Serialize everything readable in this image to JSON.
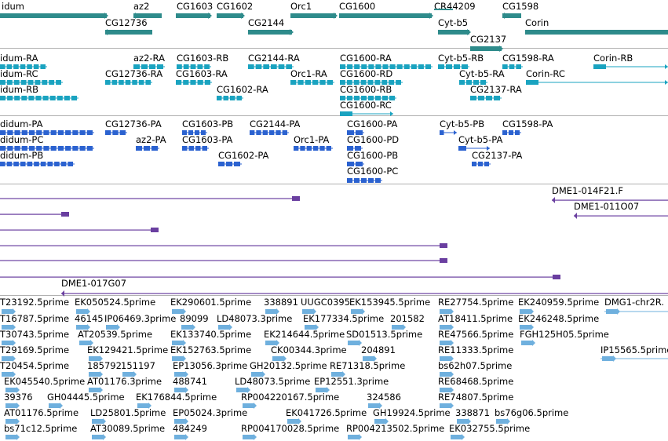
{
  "tracks": {
    "genes": {
      "color": "#2e8b8b",
      "features": [
        {
          "label": "idum"
        },
        {
          "label": "az2"
        },
        {
          "label": "CG1603"
        },
        {
          "label": "CG1602"
        },
        {
          "label": "Orc1"
        },
        {
          "label": "CG1600"
        },
        {
          "label": "CR44209"
        },
        {
          "label": "CG1598"
        },
        {
          "label": "CG12736"
        },
        {
          "label": "CG2144"
        },
        {
          "label": "Cyt-b5"
        },
        {
          "label": "Corin"
        },
        {
          "label": "CG2137"
        }
      ]
    },
    "transcripts_ra": {
      "color": "#1aa3c0",
      "features": [
        {
          "label": "idum-RA"
        },
        {
          "label": "az2-RA"
        },
        {
          "label": "CG1603-RB"
        },
        {
          "label": "CG2144-RA"
        },
        {
          "label": "CG1600-RA"
        },
        {
          "label": "Cyt-b5-RB"
        },
        {
          "label": "CG1598-RA"
        },
        {
          "label": "Corin-RB"
        },
        {
          "label": "idum-RC"
        },
        {
          "label": "CG12736-RA"
        },
        {
          "label": "CG1603-RA"
        },
        {
          "label": "Orc1-RA"
        },
        {
          "label": "CG1600-RD"
        },
        {
          "label": "Cyt-b5-RA"
        },
        {
          "label": "Corin-RC"
        },
        {
          "label": "idum-RB"
        },
        {
          "label": "CG1602-RA"
        },
        {
          "label": "CG1600-RB"
        },
        {
          "label": "CG2137-RA"
        },
        {
          "label": "CG1600-RC"
        }
      ]
    },
    "proteins_pa": {
      "color": "#2b62d0",
      "features": [
        {
          "label": "didum-PA"
        },
        {
          "label": "CG12736-PA"
        },
        {
          "label": "CG1603-PB"
        },
        {
          "label": "CG2144-PA"
        },
        {
          "label": "CG1600-PA"
        },
        {
          "label": "Cyt-b5-PB"
        },
        {
          "label": "CG1598-PA"
        },
        {
          "label": "didum-PC"
        },
        {
          "label": "az2-PA"
        },
        {
          "label": "CG1603-PA"
        },
        {
          "label": "Orc1-PA"
        },
        {
          "label": "CG1600-PD"
        },
        {
          "label": "Cyt-b5-PA"
        },
        {
          "label": "didum-PB"
        },
        {
          "label": "CG1602-PA"
        },
        {
          "label": "CG1600-PB"
        },
        {
          "label": "CG2137-PA"
        },
        {
          "label": "CG1600-PC"
        }
      ]
    },
    "clones": {
      "color": "#6a3fa0",
      "features": [
        {
          "label": "DME1-014F21.F"
        },
        {
          "label": "DME1-011O07"
        },
        {
          "label": "DME1-017G07"
        }
      ]
    },
    "ests": {
      "color": "#6fb0de",
      "features": [
        {
          "label": "T23192.5prime"
        },
        {
          "label": "EK050524.5prime"
        },
        {
          "label": "EK290601.5prime"
        },
        {
          "label": "338891"
        },
        {
          "label": "UUGC0395"
        },
        {
          "label": "EK153945.5prime"
        },
        {
          "label": "RE27754.5prime"
        },
        {
          "label": "EK240959.5prime"
        },
        {
          "label": "DMG1-chr2R."
        },
        {
          "label": "T16787.5prime"
        },
        {
          "label": "46145"
        },
        {
          "label": "IP06469.3prime"
        },
        {
          "label": "89099"
        },
        {
          "label": "LD48073.3prime"
        },
        {
          "label": "EK177334.5prime"
        },
        {
          "label": "201582"
        },
        {
          "label": "AT18411.5prime"
        },
        {
          "label": "EK246248.5prime"
        },
        {
          "label": "T30743.5prime"
        },
        {
          "label": "AT20539.5prime"
        },
        {
          "label": "EK133740.5prime"
        },
        {
          "label": "EK214644.5prime"
        },
        {
          "label": "SD01513.5prime"
        },
        {
          "label": "RE47566.5prime"
        },
        {
          "label": "FGH125H05.5prime"
        },
        {
          "label": "T29169.5prime"
        },
        {
          "label": "EK129421.5prime"
        },
        {
          "label": "EK152763.5prime"
        },
        {
          "label": "CK00344.3prime"
        },
        {
          "label": "204891"
        },
        {
          "label": "RE11333.5prime"
        },
        {
          "label": "IP15565.5prime"
        },
        {
          "label": "T20454.5prime"
        },
        {
          "label": "185792"
        },
        {
          "label": "151197"
        },
        {
          "label": "EP13056.3prime"
        },
        {
          "label": "GH20132.5prime"
        },
        {
          "label": "RE71318.5prime"
        },
        {
          "label": "bs62h07.5prime"
        },
        {
          "label": "EK045540.5prime"
        },
        {
          "label": "AT01176.3prime"
        },
        {
          "label": "488741"
        },
        {
          "label": "LD48073.5prime"
        },
        {
          "label": "EP12551.3prime"
        },
        {
          "label": "RE68468.5prime"
        },
        {
          "label": "39376"
        },
        {
          "label": "GH04445.5prime"
        },
        {
          "label": "EK176844.5prime"
        },
        {
          "label": "RP004220167.5prime"
        },
        {
          "label": "324586"
        },
        {
          "label": "RE74807.5prime"
        },
        {
          "label": "AT01176.5prime"
        },
        {
          "label": "LD25801.5prime"
        },
        {
          "label": "EP05024.3prime"
        },
        {
          "label": "EK041726.5prime"
        },
        {
          "label": "GH19924.5prime"
        },
        {
          "label": "338871"
        },
        {
          "label": "bs76g06.5prime"
        },
        {
          "label": "bs71c12.5prime"
        },
        {
          "label": "AT30089.5prime"
        },
        {
          "label": "484249"
        },
        {
          "label": "RP004170028.5prime"
        },
        {
          "label": "RP004213502.5prime"
        },
        {
          "label": "EK032755.5prime"
        }
      ]
    }
  }
}
